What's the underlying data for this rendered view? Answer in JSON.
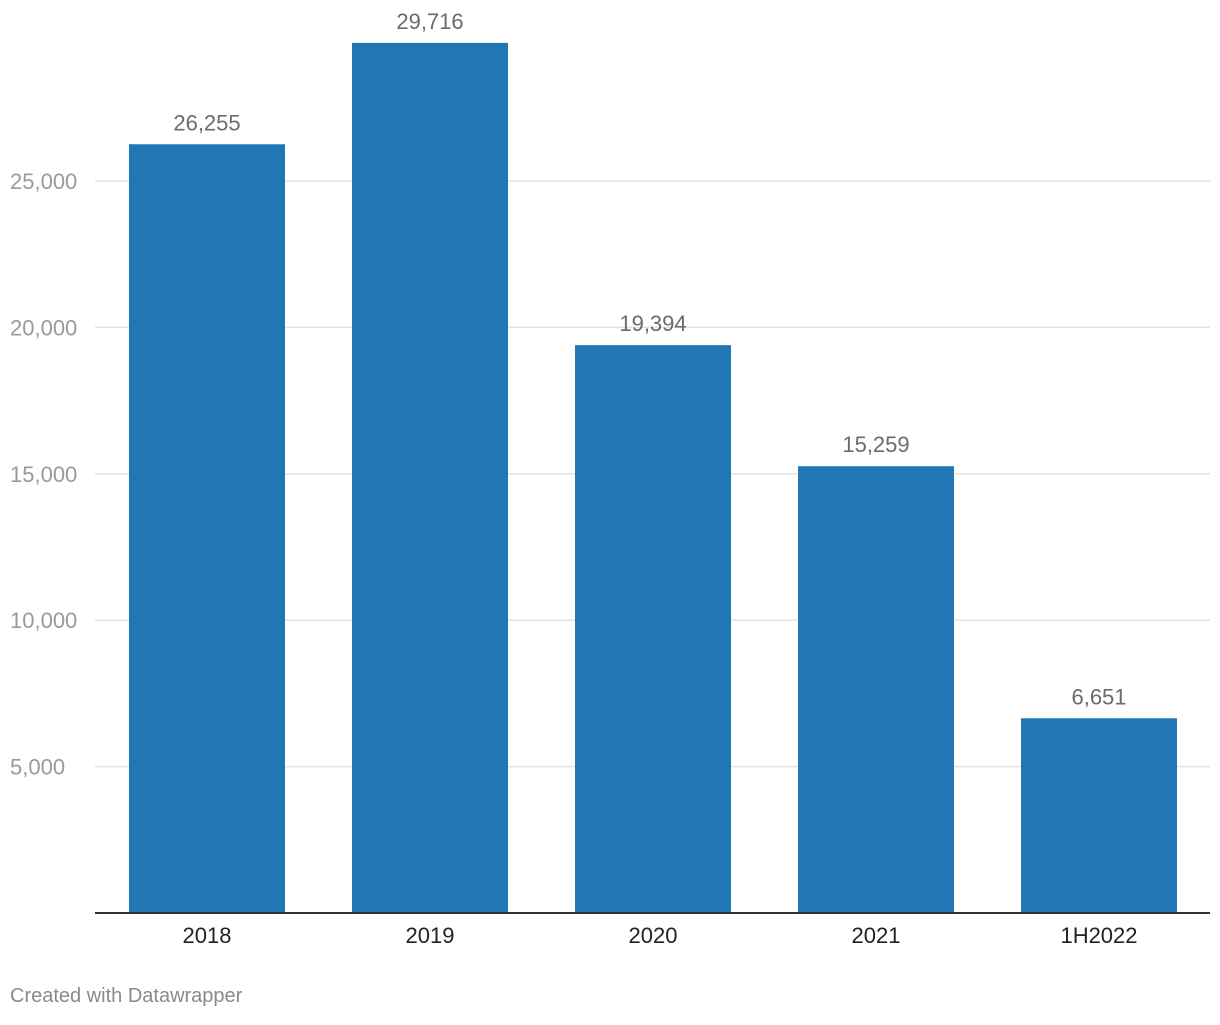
{
  "chart_data": {
    "type": "bar",
    "title": "",
    "xlabel": "",
    "ylabel": "",
    "categories": [
      "2018",
      "2019",
      "2020",
      "2021",
      "1H2022"
    ],
    "values": [
      26255,
      29716,
      19394,
      15259,
      6651
    ],
    "value_labels": [
      "26,255",
      "29,716",
      "19,394",
      "15,259",
      "6,651"
    ],
    "ylim": [
      0,
      30000
    ],
    "y_ticks": [
      5000,
      10000,
      15000,
      20000,
      25000
    ],
    "y_tick_labels": [
      "5,000",
      "10,000",
      "15,000",
      "20,000",
      "25,000"
    ],
    "grid": true,
    "legend": "none",
    "bar_color": "#2077b4"
  },
  "footer": {
    "credit": "Created with Datawrapper"
  }
}
